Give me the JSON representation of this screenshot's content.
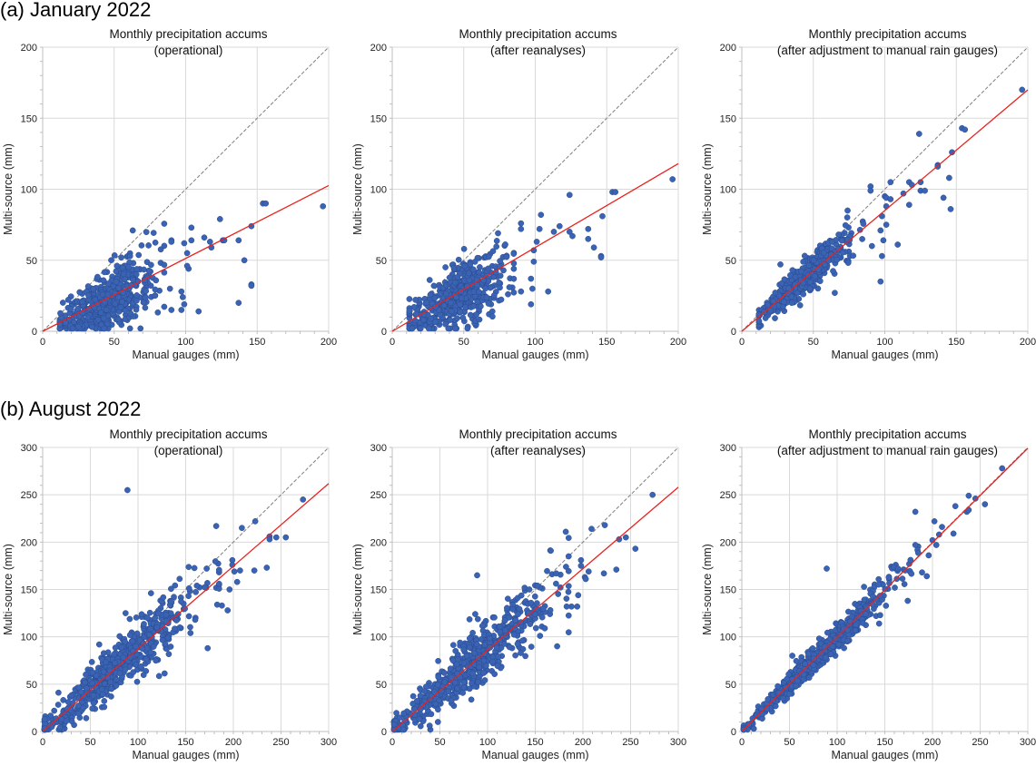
{
  "sections": [
    {
      "label": "(a) January 2022"
    },
    {
      "label": "(b) August 2022"
    }
  ],
  "colors": {
    "points": "#3a63b4",
    "point_edge": "#2a4a8e",
    "regression": "#e8231f",
    "identity": "#7f7f7f",
    "grid": "#d9d9d9"
  },
  "chart_data": [
    {
      "type": "scatter",
      "section": 0,
      "title": [
        "Monthly precipitation accums",
        "(operational)"
      ],
      "xlabel": "Manual gauges (mm)",
      "ylabel": "Multi-source (mm)",
      "xlim": [
        0,
        200
      ],
      "ylim": [
        0,
        200
      ],
      "xticks": [
        0,
        50,
        100,
        150,
        200
      ],
      "yticks": [
        0,
        50,
        100,
        150,
        200
      ],
      "grid": true,
      "identity_line": true,
      "regression": {
        "slope": 0.513,
        "intercept": 0
      },
      "outliers": [
        [
          196,
          88
        ],
        [
          154,
          90
        ],
        [
          156,
          90
        ],
        [
          124,
          79
        ],
        [
          146,
          74
        ],
        [
          104,
          73
        ],
        [
          113,
          66
        ],
        [
          126,
          64
        ],
        [
          127,
          64
        ],
        [
          137,
          64
        ],
        [
          117,
          63
        ],
        [
          104,
          64
        ],
        [
          99,
          62
        ],
        [
          90,
          64
        ],
        [
          90,
          63
        ],
        [
          141,
          50
        ],
        [
          146,
          33
        ],
        [
          146,
          32
        ],
        [
          137,
          20
        ],
        [
          109,
          14
        ],
        [
          97,
          15
        ],
        [
          90,
          15
        ],
        [
          99,
          19
        ],
        [
          98,
          24
        ],
        [
          97,
          28
        ],
        [
          89,
          30
        ],
        [
          63,
          71
        ],
        [
          101,
          55
        ],
        [
          102,
          44
        ],
        [
          101,
          46
        ],
        [
          118,
          59
        ]
      ],
      "cloud": {
        "center": [
          45,
          28
        ],
        "n": 520,
        "x_range": [
          12,
          85
        ],
        "slope": 0.48,
        "spread": 9
      }
    },
    {
      "type": "scatter",
      "section": 0,
      "title": [
        "Monthly precipitation accums",
        "(after reanalyses)"
      ],
      "xlabel": "Manual gauges (mm)",
      "ylabel": "Multi-source (mm)",
      "xlim": [
        0,
        200
      ],
      "ylim": [
        0,
        200
      ],
      "xticks": [
        0,
        50,
        100,
        150,
        200
      ],
      "yticks": [
        0,
        50,
        100,
        150,
        200
      ],
      "grid": true,
      "identity_line": true,
      "regression": {
        "slope": 0.59,
        "intercept": 0
      },
      "outliers": [
        [
          196,
          107
        ],
        [
          154,
          98
        ],
        [
          156,
          98
        ],
        [
          124,
          96
        ],
        [
          104,
          82
        ],
        [
          147,
          81
        ],
        [
          117,
          74
        ],
        [
          137,
          72
        ],
        [
          113,
          70
        ],
        [
          103,
          72
        ],
        [
          90,
          76
        ],
        [
          90,
          72
        ],
        [
          124,
          70
        ],
        [
          126,
          67
        ],
        [
          137,
          65
        ],
        [
          141,
          59
        ],
        [
          146,
          53
        ],
        [
          146,
          52
        ],
        [
          101,
          63
        ],
        [
          99,
          57
        ],
        [
          99,
          49
        ],
        [
          98,
          30
        ],
        [
          97,
          37
        ],
        [
          97,
          19
        ],
        [
          109,
          28
        ],
        [
          90,
          28
        ],
        [
          74,
          69
        ]
      ],
      "cloud": {
        "center": [
          46,
          30
        ],
        "n": 520,
        "x_range": [
          12,
          85
        ],
        "slope": 0.55,
        "spread": 9
      }
    },
    {
      "type": "scatter",
      "section": 0,
      "title": [
        "Monthly precipitation accums",
        "(after adjustment to manual rain gauges)"
      ],
      "xlabel": "Manual gauges (mm)",
      "ylabel": "Multi-source (mm)",
      "xlim": [
        0,
        200
      ],
      "ylim": [
        0,
        200
      ],
      "xticks": [
        0,
        50,
        100,
        150,
        200
      ],
      "yticks": [
        0,
        50,
        100,
        150,
        200
      ],
      "grid": true,
      "identity_line": true,
      "regression": {
        "slope": 0.85,
        "intercept": 0
      },
      "outliers": [
        [
          196,
          170
        ],
        [
          154,
          143
        ],
        [
          156,
          142
        ],
        [
          124,
          139
        ],
        [
          147,
          126
        ],
        [
          137,
          117
        ],
        [
          137,
          116
        ],
        [
          117,
          105
        ],
        [
          125,
          105
        ],
        [
          104,
          105
        ],
        [
          90,
          102
        ],
        [
          90,
          99
        ],
        [
          113,
          97
        ],
        [
          119,
          103
        ],
        [
          125,
          99
        ],
        [
          128,
          99
        ],
        [
          145,
          108
        ],
        [
          141,
          94
        ],
        [
          146,
          86
        ],
        [
          117,
          89
        ],
        [
          100,
          95
        ],
        [
          101,
          94
        ],
        [
          104,
          93
        ],
        [
          101,
          88
        ],
        [
          98,
          81
        ],
        [
          99,
          64
        ],
        [
          97,
          71
        ],
        [
          101,
          75
        ],
        [
          98,
          53
        ],
        [
          97,
          35
        ],
        [
          109,
          61
        ],
        [
          91,
          60
        ],
        [
          74,
          85
        ],
        [
          27,
          47
        ],
        [
          65,
          27
        ]
      ],
      "cloud": {
        "center": [
          45,
          40
        ],
        "n": 520,
        "x_range": [
          12,
          85
        ],
        "slope": 0.86,
        "spread": 5
      }
    },
    {
      "type": "scatter",
      "section": 1,
      "title": [
        "Monthly precipitation accums",
        "(operational)"
      ],
      "xlabel": "Manual gauges (mm)",
      "ylabel": "Multi-source (mm)",
      "xlim": [
        0,
        300
      ],
      "ylim": [
        0,
        300
      ],
      "xticks": [
        0,
        50,
        100,
        150,
        200,
        250,
        300
      ],
      "yticks": [
        0,
        50,
        100,
        150,
        200,
        250,
        300
      ],
      "grid": true,
      "identity_line": true,
      "regression": {
        "slope": 0.873,
        "intercept": 0
      },
      "outliers": [
        [
          89,
          255
        ],
        [
          273,
          245
        ],
        [
          223,
          222
        ],
        [
          209,
          215
        ],
        [
          182,
          217
        ],
        [
          238,
          206
        ],
        [
          238,
          203
        ],
        [
          245,
          205
        ],
        [
          255,
          205
        ],
        [
          199,
          181
        ],
        [
          199,
          176
        ],
        [
          201,
          169
        ],
        [
          207,
          170
        ],
        [
          222,
          170
        ],
        [
          235,
          173
        ],
        [
          204,
          158
        ],
        [
          196,
          150
        ],
        [
          172,
          172
        ],
        [
          194,
          128
        ],
        [
          188,
          133
        ],
        [
          183,
          134
        ],
        [
          173,
          88
        ],
        [
          155,
          104
        ],
        [
          160,
          118
        ],
        [
          87,
          125
        ]
      ],
      "cloud": {
        "center": [
          80,
          72
        ],
        "n": 620,
        "x_range": [
          2,
          185
        ],
        "slope": 0.88,
        "spread": 13
      }
    },
    {
      "type": "scatter",
      "section": 1,
      "title": [
        "Monthly precipitation accums",
        "(after reanalyses)"
      ],
      "xlabel": "Manual gauges (mm)",
      "ylabel": "Multi-source (mm)",
      "xlim": [
        0,
        300
      ],
      "ylim": [
        0,
        300
      ],
      "xticks": [
        0,
        50,
        100,
        150,
        200,
        250,
        300
      ],
      "yticks": [
        0,
        50,
        100,
        150,
        200,
        250,
        300
      ],
      "grid": true,
      "identity_line": true,
      "regression": {
        "slope": 0.86,
        "intercept": 0
      },
      "outliers": [
        [
          273,
          250
        ],
        [
          223,
          218
        ],
        [
          209,
          214
        ],
        [
          182,
          211
        ],
        [
          238,
          203
        ],
        [
          245,
          205
        ],
        [
          255,
          193
        ],
        [
          198,
          181
        ],
        [
          198,
          175
        ],
        [
          206,
          169
        ],
        [
          202,
          163
        ],
        [
          203,
          161
        ],
        [
          222,
          167
        ],
        [
          235,
          171
        ],
        [
          172,
          167
        ],
        [
          195,
          144
        ],
        [
          194,
          132
        ],
        [
          188,
          132
        ],
        [
          183,
          132
        ],
        [
          173,
          90
        ],
        [
          155,
          101
        ],
        [
          160,
          109
        ],
        [
          89,
          165
        ],
        [
          87,
          124
        ]
      ],
      "cloud": {
        "center": [
          80,
          72
        ],
        "n": 620,
        "x_range": [
          2,
          185
        ],
        "slope": 0.87,
        "spread": 13
      }
    },
    {
      "type": "scatter",
      "section": 1,
      "title": [
        "Monthly precipitation accums",
        "(after adjustment to manual rain gauges)"
      ],
      "xlabel": "Manual gauges (mm)",
      "ylabel": "Multi-source (mm)",
      "xlim": [
        0,
        300
      ],
      "ylim": [
        0,
        300
      ],
      "xticks": [
        0,
        50,
        100,
        150,
        200,
        250,
        300
      ],
      "yticks": [
        0,
        50,
        100,
        150,
        200,
        250,
        300
      ],
      "grid": true,
      "identity_line": true,
      "regression": {
        "slope": 0.997,
        "intercept": 0
      },
      "outliers": [
        [
          273,
          278
        ],
        [
          238,
          249
        ],
        [
          245,
          246
        ],
        [
          255,
          240
        ],
        [
          224,
          238
        ],
        [
          236,
          232
        ],
        [
          238,
          234
        ],
        [
          182,
          232
        ],
        [
          202,
          222
        ],
        [
          210,
          216
        ],
        [
          207,
          208
        ],
        [
          222,
          209
        ],
        [
          200,
          202
        ],
        [
          204,
          197
        ],
        [
          196,
          186
        ],
        [
          182,
          197
        ],
        [
          189,
          168
        ],
        [
          194,
          164
        ],
        [
          174,
          138
        ],
        [
          89,
          172
        ],
        [
          53,
          80
        ],
        [
          144,
          114
        ]
      ],
      "cloud": {
        "center": [
          80,
          80
        ],
        "n": 620,
        "x_range": [
          2,
          185
        ],
        "slope": 0.99,
        "spread": 6
      }
    }
  ]
}
